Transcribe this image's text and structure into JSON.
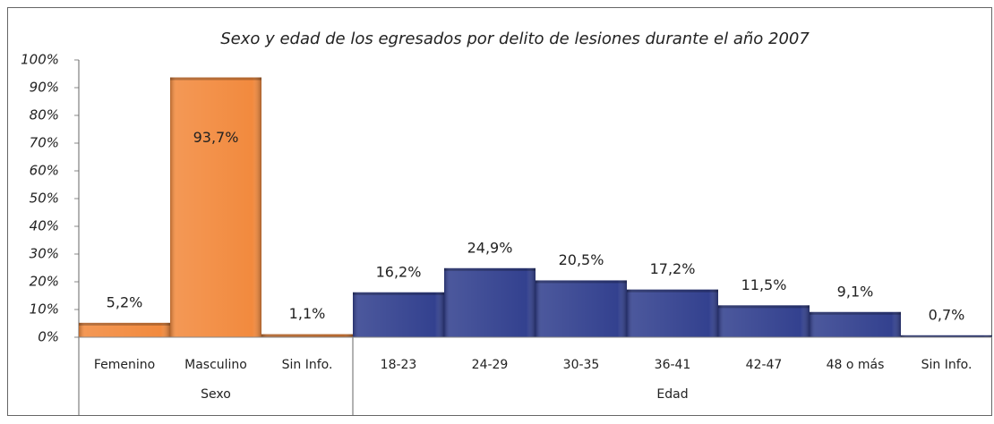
{
  "chart_data": {
    "type": "bar",
    "title": "Sexo y edad de los egresados por delito de lesiones durante el año 2007",
    "groups": [
      {
        "name": "Sexo",
        "color": "#f28a3e",
        "categories": [
          "Femenino",
          "Masculino",
          "Sin Info."
        ],
        "values": [
          5.2,
          93.7,
          1.1
        ],
        "value_labels": [
          "5,2%",
          "93,7%",
          "1,1%"
        ]
      },
      {
        "name": "Edad",
        "color": "#33418f",
        "categories": [
          "18-23",
          "24-29",
          "30-35",
          "36-41",
          "42-47",
          "48 o más",
          "Sin Info."
        ],
        "values": [
          16.2,
          24.9,
          20.5,
          17.2,
          11.5,
          9.1,
          0.7
        ],
        "value_labels": [
          "16,2%",
          "24,9%",
          "20,5%",
          "17,2%",
          "11,5%",
          "9,1%",
          "0,7%"
        ]
      }
    ],
    "ylim": [
      0,
      100
    ],
    "yticks": [
      {
        "value": 0,
        "label": "0%"
      },
      {
        "value": 10,
        "label": "10%"
      },
      {
        "value": 20,
        "label": "20%"
      },
      {
        "value": 30,
        "label": "30%"
      },
      {
        "value": 40,
        "label": "40%"
      },
      {
        "value": 50,
        "label": "50%"
      },
      {
        "value": 60,
        "label": "60%"
      },
      {
        "value": 70,
        "label": "70%"
      },
      {
        "value": 80,
        "label": "80%"
      },
      {
        "value": 90,
        "label": "90%"
      },
      {
        "value": 100,
        "label": "100%"
      }
    ],
    "grid": false
  }
}
